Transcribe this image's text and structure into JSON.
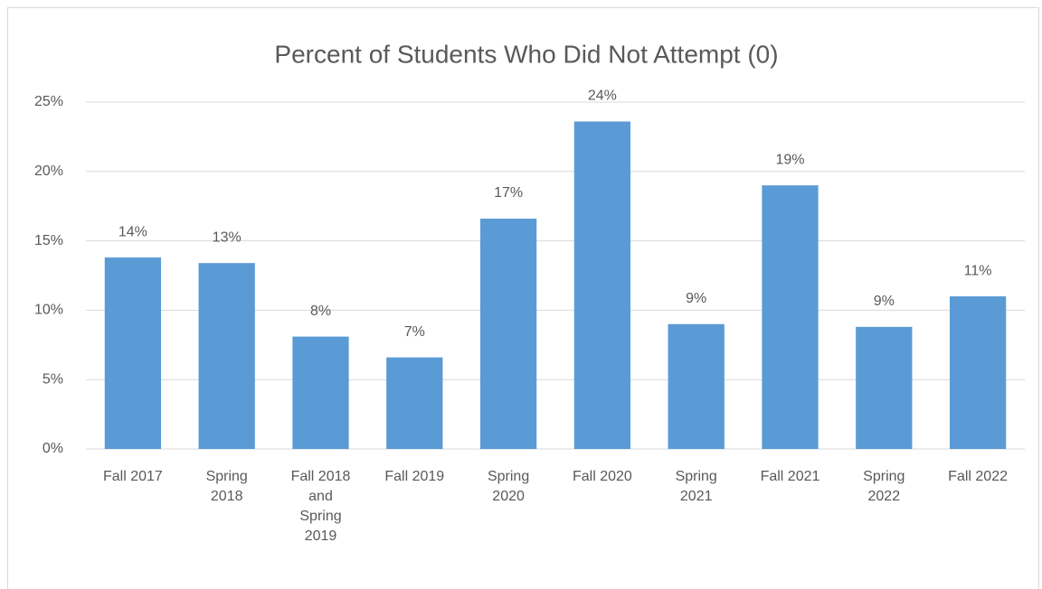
{
  "chart_data": {
    "type": "bar",
    "title": "Percent of Students Who Did Not Attempt (0)",
    "categories": [
      "Fall 2017",
      "Spring 2018",
      "Fall 2018 and Spring 2019",
      "Fall 2019",
      "Spring 2020",
      "Fall 2020",
      "Spring 2021",
      "Fall 2021",
      "Spring 2022",
      "Fall 2022"
    ],
    "values": [
      13.8,
      13.4,
      8.1,
      6.6,
      16.6,
      23.6,
      9.0,
      19.0,
      8.8,
      11.0
    ],
    "value_labels": [
      "14%",
      "13%",
      "8%",
      "7%",
      "17%",
      "24%",
      "9%",
      "19%",
      "9%",
      "11%"
    ],
    "color": "#5b9bd5",
    "ylim": [
      0,
      25
    ],
    "yticks": [
      {
        "value": 0,
        "label": "0%"
      },
      {
        "value": 5,
        "label": "5%"
      },
      {
        "value": 10,
        "label": "10%"
      },
      {
        "value": 15,
        "label": "15%"
      },
      {
        "value": 20,
        "label": "20%"
      },
      {
        "value": 25,
        "label": "25%"
      }
    ],
    "grid": true
  }
}
